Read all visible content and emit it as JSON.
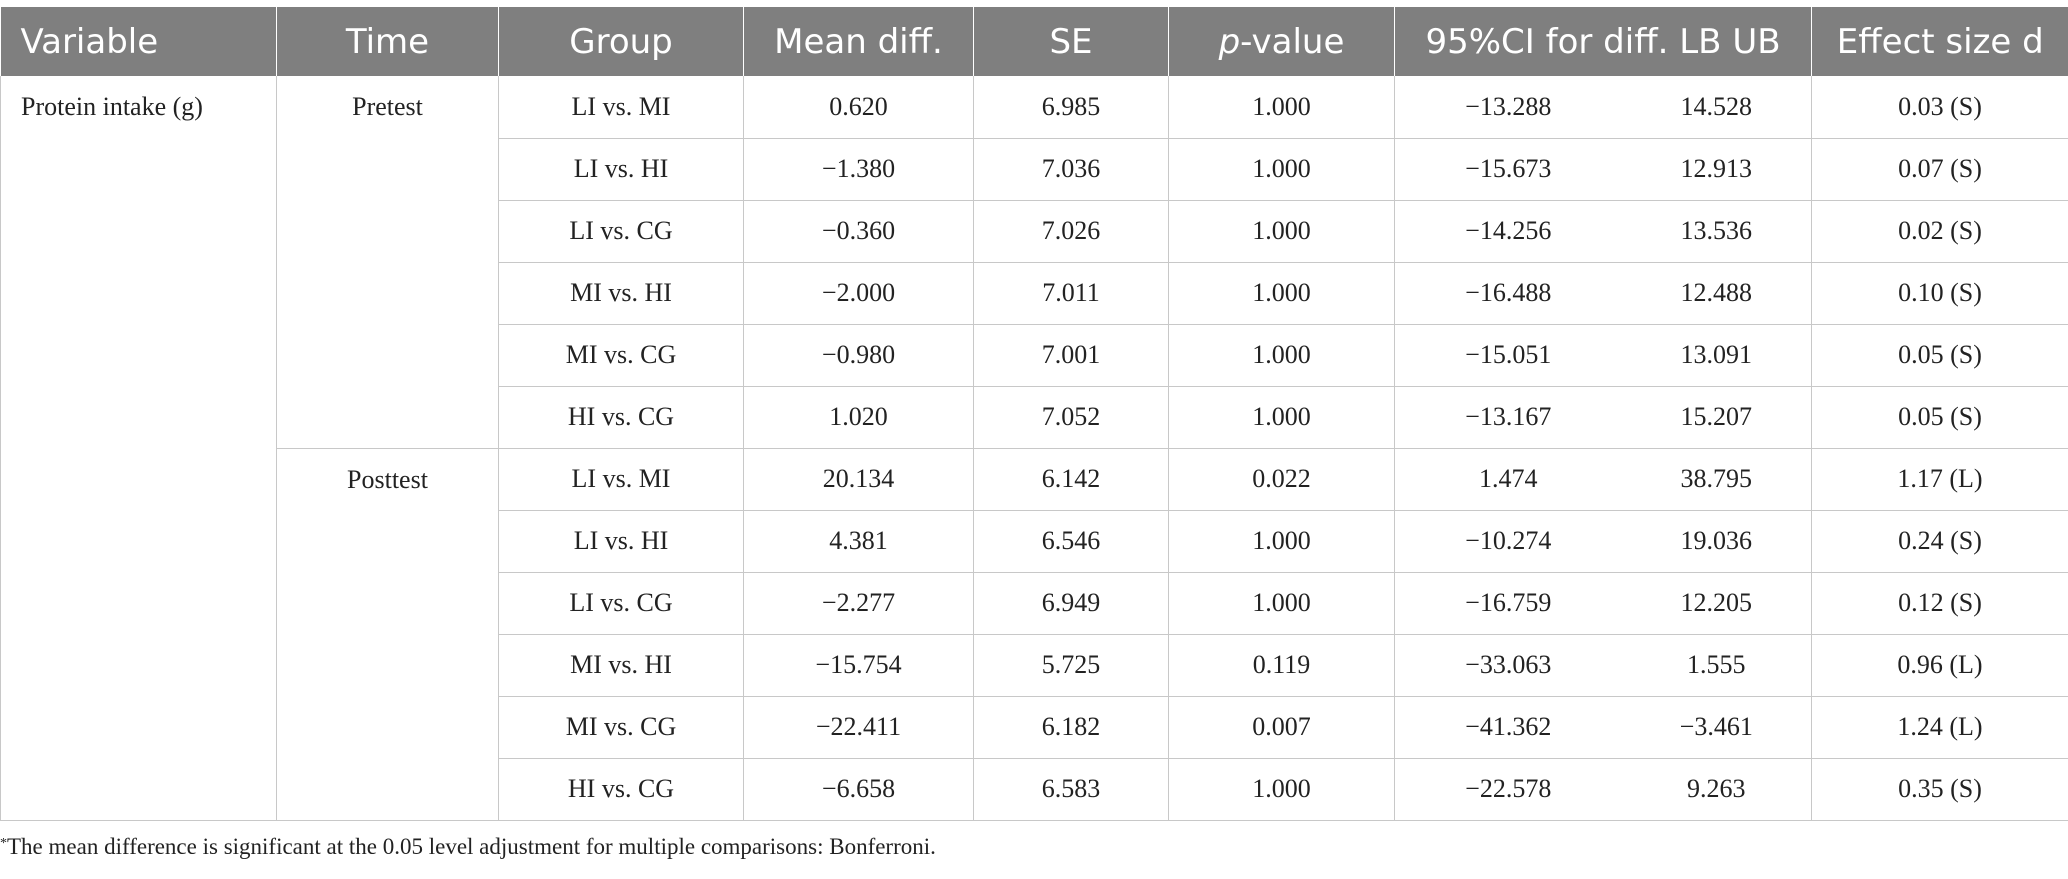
{
  "table": {
    "headers": {
      "variable": "Variable",
      "time": "Time",
      "group": "Group",
      "mean_diff": "Mean diff.",
      "se": "SE",
      "p_value_italic": "p",
      "p_value_rest": "-value",
      "ci": "95%CI for diff. LB UB",
      "effect_size": "Effect size d"
    },
    "variable": "Protein intake (g)",
    "blocks": [
      {
        "time": "Pretest",
        "rows": [
          {
            "group": "LI vs. MI",
            "mean_diff": "0.620",
            "se": "6.985",
            "p": "1.000",
            "lb": "−13.288",
            "ub": "14.528",
            "d": "0.03 (S)"
          },
          {
            "group": "LI vs. HI",
            "mean_diff": "−1.380",
            "se": "7.036",
            "p": "1.000",
            "lb": "−15.673",
            "ub": "12.913",
            "d": "0.07 (S)"
          },
          {
            "group": "LI vs. CG",
            "mean_diff": "−0.360",
            "se": "7.026",
            "p": "1.000",
            "lb": "−14.256",
            "ub": "13.536",
            "d": "0.02 (S)"
          },
          {
            "group": "MI vs. HI",
            "mean_diff": "−2.000",
            "se": "7.011",
            "p": "1.000",
            "lb": "−16.488",
            "ub": "12.488",
            "d": "0.10 (S)"
          },
          {
            "group": "MI vs. CG",
            "mean_diff": "−0.980",
            "se": "7.001",
            "p": "1.000",
            "lb": "−15.051",
            "ub": "13.091",
            "d": "0.05 (S)"
          },
          {
            "group": "HI vs. CG",
            "mean_diff": "1.020",
            "se": "7.052",
            "p": "1.000",
            "lb": "−13.167",
            "ub": "15.207",
            "d": "0.05 (S)"
          }
        ]
      },
      {
        "time": "Posttest",
        "rows": [
          {
            "group": "LI vs. MI",
            "mean_diff": "20.134",
            "se": "6.142",
            "p": "0.022",
            "lb": "1.474",
            "ub": "38.795",
            "d": "1.17 (L)"
          },
          {
            "group": "LI vs. HI",
            "mean_diff": "4.381",
            "se": "6.546",
            "p": "1.000",
            "lb": "−10.274",
            "ub": "19.036",
            "d": "0.24 (S)"
          },
          {
            "group": "LI vs. CG",
            "mean_diff": "−2.277",
            "se": "6.949",
            "p": "1.000",
            "lb": "−16.759",
            "ub": "12.205",
            "d": "0.12 (S)"
          },
          {
            "group": "MI vs. HI",
            "mean_diff": "−15.754",
            "se": "5.725",
            "p": "0.119",
            "lb": "−33.063",
            "ub": "1.555",
            "d": "0.96 (L)"
          },
          {
            "group": "MI vs. CG",
            "mean_diff": "−22.411",
            "se": "6.182",
            "p": "0.007",
            "lb": "−41.362",
            "ub": "−3.461",
            "d": "1.24 (L)"
          },
          {
            "group": "HI vs. CG",
            "mean_diff": "−6.658",
            "se": "6.583",
            "p": "1.000",
            "lb": "−22.578",
            "ub": "9.263",
            "d": "0.35 (S)"
          }
        ]
      }
    ]
  },
  "footnote": {
    "marker": "*",
    "text": "The mean difference is significant at the 0.05 level adjustment for multiple comparisons: Bonferroni."
  },
  "colors": {
    "header_bg": "#7f7f7f",
    "header_text": "#ffffff",
    "grid": "#c8c8c8"
  }
}
